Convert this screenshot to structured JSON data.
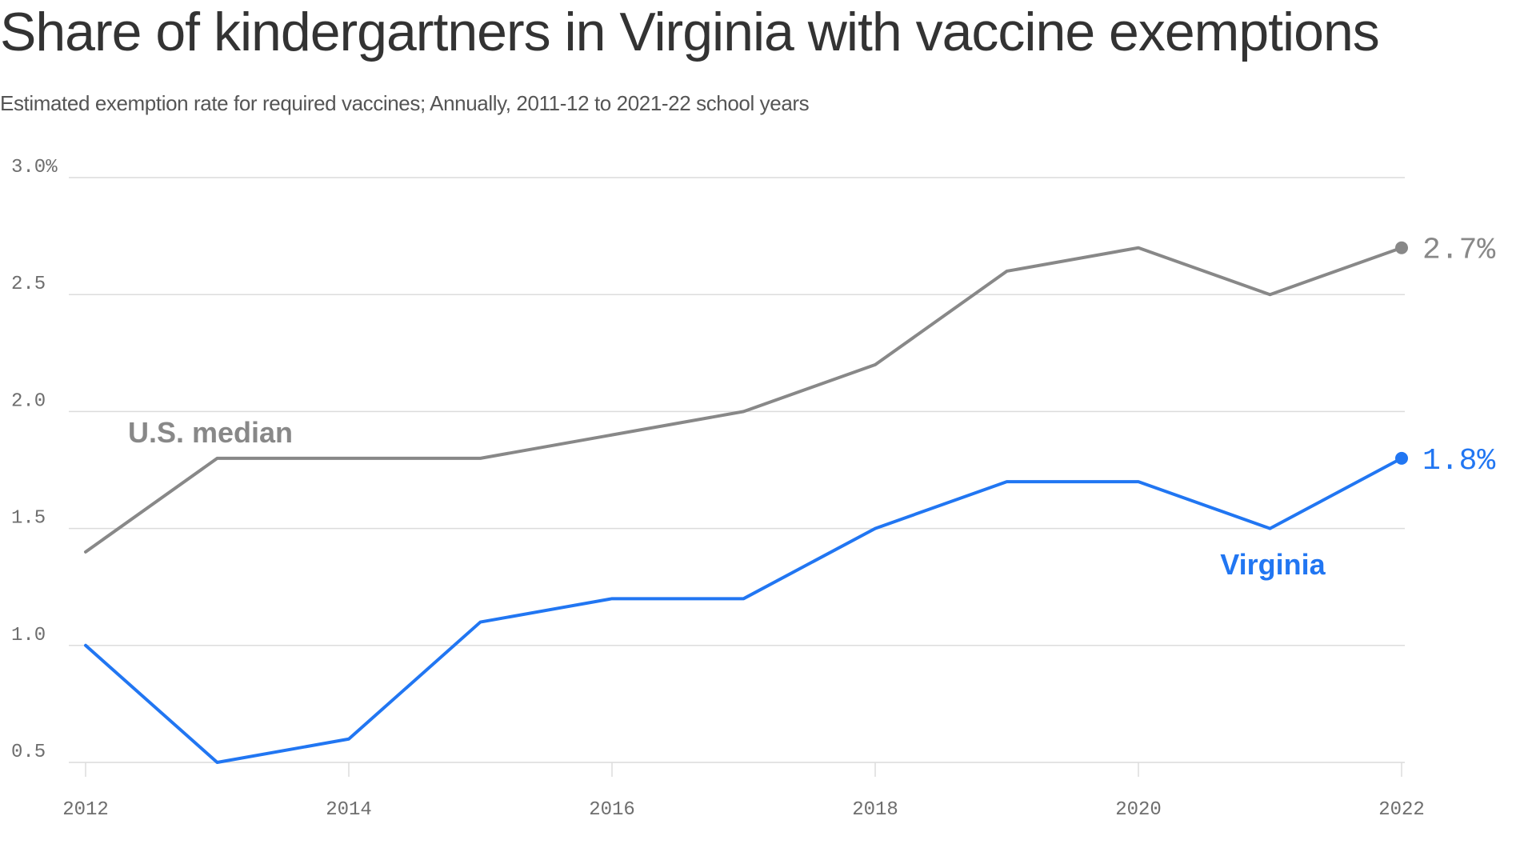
{
  "title": "Share of kindergartners in Virginia with vaccine exemptions",
  "subtitle": "Estimated exemption rate for required vaccines; Annually, 2011-12 to 2021-22 school years",
  "chart_data": {
    "type": "line",
    "title": "Share of kindergartners in Virginia with vaccine exemptions",
    "subtitle": "Estimated exemption rate for required vaccines; Annually, 2011-12 to 2021-22 school years",
    "x": [
      2012,
      2013,
      2014,
      2015,
      2016,
      2017,
      2018,
      2019,
      2020,
      2021,
      2022
    ],
    "x_tick_values": [
      2012,
      2014,
      2016,
      2018,
      2020,
      2022
    ],
    "x_tick_labels": [
      "2012",
      "2014",
      "2016",
      "2018",
      "2020",
      "2022"
    ],
    "y_tick_values": [
      0.5,
      1.0,
      1.5,
      2.0,
      2.5,
      3.0
    ],
    "y_tick_labels": [
      "0.5",
      "1.0",
      "1.5",
      "2.0",
      "2.5",
      "3.0%"
    ],
    "xlim": [
      2012,
      2022
    ],
    "ylim": [
      0.5,
      3.0
    ],
    "grid": true,
    "series": [
      {
        "name": "U.S. median",
        "color": "#888888",
        "values": [
          1.4,
          1.8,
          1.8,
          1.8,
          1.9,
          2.0,
          2.2,
          2.6,
          2.7,
          2.5,
          2.7
        ],
        "end_label": "2.7%"
      },
      {
        "name": "Virginia",
        "color": "#2176f2",
        "values": [
          1.0,
          0.5,
          0.6,
          1.1,
          1.2,
          1.2,
          1.5,
          1.7,
          1.7,
          1.5,
          1.8
        ],
        "end_label": "1.8%"
      }
    ]
  }
}
